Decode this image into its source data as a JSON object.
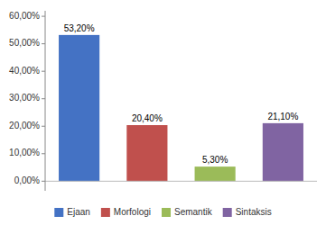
{
  "chart_data": {
    "type": "bar",
    "categories": [
      "Ejaan",
      "Morfologi",
      "Semantik",
      "Sintaksis"
    ],
    "values": [
      53.2,
      20.4,
      5.3,
      21.1
    ],
    "value_labels": [
      "53,20%",
      "20,40%",
      "5,30%",
      "21,10%"
    ],
    "colors": [
      "#4472C4",
      "#C0504D",
      "#9BBB59",
      "#8064A2"
    ],
    "ylim": [
      -3.5,
      62
    ],
    "yticks": [
      {
        "value": 0,
        "label": "0,00%"
      },
      {
        "value": 10,
        "label": "10,00%"
      },
      {
        "value": 20,
        "label": "20,00%"
      },
      {
        "value": 30,
        "label": "30,00%"
      },
      {
        "value": 40,
        "label": "40,00%"
      },
      {
        "value": 50,
        "label": "50,00%"
      },
      {
        "value": 60,
        "label": "60,00%"
      }
    ],
    "data_labels": true,
    "tick_labels": "y",
    "legend": "bottom",
    "grid": false
  }
}
